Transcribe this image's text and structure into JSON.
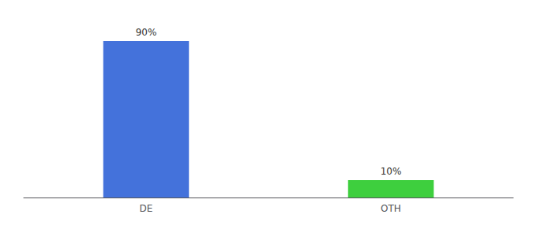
{
  "chart_data": {
    "type": "bar",
    "categories": [
      "DE",
      "OTH"
    ],
    "values": [
      90,
      10
    ],
    "value_labels": [
      "90%",
      "10%"
    ],
    "colors": [
      "#4472db",
      "#3ecf3e"
    ],
    "ylim": [
      0,
      100
    ],
    "data_labels": true,
    "tick_labels": "x",
    "grid": false
  }
}
